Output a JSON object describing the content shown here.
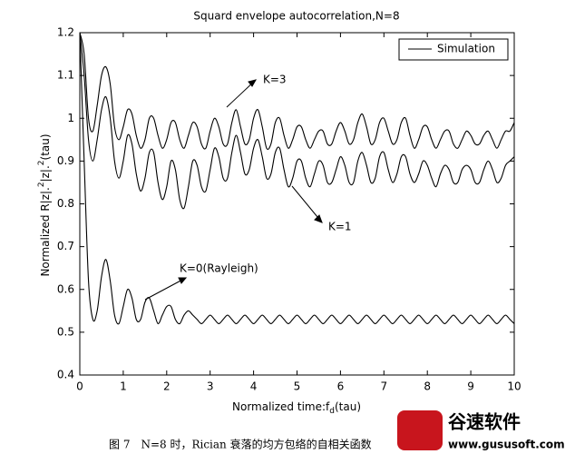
{
  "chart_data": {
    "type": "line",
    "title": "Squard envelope autocorrelation,N=8",
    "xlabel": [
      "Normalized time:f",
      "d",
      "(tau)"
    ],
    "ylabel": [
      "Normalized R|z|.",
      "2",
      "|z|.",
      "2",
      "(tau)"
    ],
    "legend_label": "Simulation",
    "x": [
      0,
      0.1,
      0.2,
      0.3,
      0.4,
      0.5,
      0.6,
      0.7,
      0.8,
      0.9,
      1,
      1.1,
      1.2,
      1.3,
      1.4,
      1.5,
      1.6,
      1.7,
      1.8,
      1.9,
      2,
      2.1,
      2.2,
      2.3,
      2.4,
      2.5,
      2.6,
      2.7,
      2.8,
      2.9,
      3,
      3.1,
      3.2,
      3.3,
      3.4,
      3.5,
      3.6,
      3.7,
      3.8,
      3.9,
      4,
      4.1,
      4.2,
      4.3,
      4.4,
      4.5,
      4.6,
      4.7,
      4.8,
      4.9,
      5,
      5.1,
      5.2,
      5.3,
      5.4,
      5.5,
      5.6,
      5.7,
      5.8,
      5.9,
      6,
      6.1,
      6.2,
      6.3,
      6.4,
      6.5,
      6.6,
      6.7,
      6.8,
      6.9,
      7,
      7.1,
      7.2,
      7.3,
      7.4,
      7.5,
      7.6,
      7.7,
      7.8,
      7.9,
      8,
      8.1,
      8.2,
      8.3,
      8.4,
      8.5,
      8.6,
      8.7,
      8.8,
      8.9,
      9,
      9.1,
      9.2,
      9.3,
      9.4,
      9.5,
      9.6,
      9.7,
      9.8,
      9.9,
      10
    ],
    "series": [
      {
        "name": "K=3",
        "color": "#000000",
        "values": [
          1.2,
          1.15,
          1.0,
          0.97,
          1.03,
          1.1,
          1.12,
          1.08,
          0.98,
          0.95,
          0.98,
          1.02,
          1.01,
          0.96,
          0.93,
          0.95,
          1.0,
          1.0,
          0.96,
          0.93,
          0.95,
          0.99,
          0.99,
          0.95,
          0.93,
          0.96,
          0.99,
          0.98,
          0.94,
          0.93,
          0.97,
          1.0,
          0.98,
          0.94,
          0.94,
          0.99,
          1.02,
          0.98,
          0.94,
          0.95,
          1.0,
          1.02,
          0.98,
          0.93,
          0.94,
          0.99,
          1.0,
          0.96,
          0.93,
          0.95,
          0.98,
          0.98,
          0.95,
          0.93,
          0.95,
          0.97,
          0.97,
          0.94,
          0.94,
          0.97,
          0.99,
          0.97,
          0.94,
          0.95,
          0.99,
          1.01,
          0.98,
          0.94,
          0.95,
          0.99,
          1.0,
          0.97,
          0.94,
          0.95,
          0.99,
          1.0,
          0.96,
          0.93,
          0.95,
          0.98,
          0.98,
          0.95,
          0.93,
          0.95,
          0.97,
          0.97,
          0.94,
          0.93,
          0.95,
          0.97,
          0.96,
          0.94,
          0.94,
          0.96,
          0.97,
          0.95,
          0.93,
          0.95,
          0.97,
          0.97,
          0.99
        ]
      },
      {
        "name": "K=1",
        "color": "#000000",
        "values": [
          1.2,
          1.1,
          0.95,
          0.9,
          0.95,
          1.02,
          1.05,
          1.0,
          0.9,
          0.86,
          0.9,
          0.96,
          0.94,
          0.87,
          0.83,
          0.86,
          0.92,
          0.92,
          0.85,
          0.81,
          0.84,
          0.9,
          0.88,
          0.81,
          0.79,
          0.84,
          0.9,
          0.89,
          0.84,
          0.83,
          0.88,
          0.93,
          0.91,
          0.86,
          0.86,
          0.92,
          0.96,
          0.92,
          0.87,
          0.88,
          0.93,
          0.95,
          0.91,
          0.86,
          0.87,
          0.92,
          0.93,
          0.88,
          0.84,
          0.86,
          0.9,
          0.9,
          0.86,
          0.84,
          0.87,
          0.9,
          0.89,
          0.85,
          0.85,
          0.88,
          0.91,
          0.89,
          0.85,
          0.85,
          0.9,
          0.92,
          0.89,
          0.85,
          0.86,
          0.91,
          0.92,
          0.88,
          0.85,
          0.87,
          0.91,
          0.91,
          0.87,
          0.85,
          0.87,
          0.9,
          0.89,
          0.86,
          0.84,
          0.87,
          0.89,
          0.88,
          0.85,
          0.85,
          0.88,
          0.89,
          0.88,
          0.85,
          0.85,
          0.88,
          0.9,
          0.88,
          0.85,
          0.86,
          0.89,
          0.9,
          0.91
        ]
      },
      {
        "name": "K=0(Rayleigh)",
        "color": "#000000",
        "values": [
          1.2,
          0.9,
          0.62,
          0.53,
          0.55,
          0.63,
          0.67,
          0.62,
          0.54,
          0.52,
          0.56,
          0.6,
          0.58,
          0.53,
          0.53,
          0.57,
          0.58,
          0.55,
          0.52,
          0.54,
          0.56,
          0.56,
          0.53,
          0.52,
          0.54,
          0.55,
          0.54,
          0.53,
          0.52,
          0.53,
          0.54,
          0.53,
          0.52,
          0.53,
          0.54,
          0.53,
          0.52,
          0.53,
          0.54,
          0.53,
          0.52,
          0.53,
          0.54,
          0.53,
          0.52,
          0.53,
          0.54,
          0.53,
          0.52,
          0.53,
          0.54,
          0.53,
          0.52,
          0.53,
          0.54,
          0.53,
          0.52,
          0.53,
          0.54,
          0.53,
          0.52,
          0.53,
          0.54,
          0.53,
          0.52,
          0.53,
          0.54,
          0.53,
          0.52,
          0.53,
          0.54,
          0.53,
          0.52,
          0.53,
          0.54,
          0.53,
          0.52,
          0.53,
          0.54,
          0.53,
          0.52,
          0.53,
          0.54,
          0.53,
          0.52,
          0.53,
          0.54,
          0.53,
          0.52,
          0.53,
          0.54,
          0.53,
          0.52,
          0.53,
          0.54,
          0.53,
          0.52,
          0.53,
          0.54,
          0.53,
          0.52
        ]
      }
    ],
    "xlim": [
      0,
      10
    ],
    "ylim": [
      0.4,
      1.2
    ],
    "xticks": [
      0,
      1,
      2,
      3,
      4,
      5,
      6,
      7,
      8,
      9,
      10
    ],
    "yticks": [
      0.4,
      0.5,
      0.6,
      0.7,
      0.8,
      0.9,
      1,
      1.1,
      1.2
    ],
    "grid": false
  },
  "caption": "图 7　N=8 时，Rician 衰落的均方包络的自相关函数",
  "watermark": {
    "name": "谷速软件",
    "url": "www.gususoft.com"
  }
}
